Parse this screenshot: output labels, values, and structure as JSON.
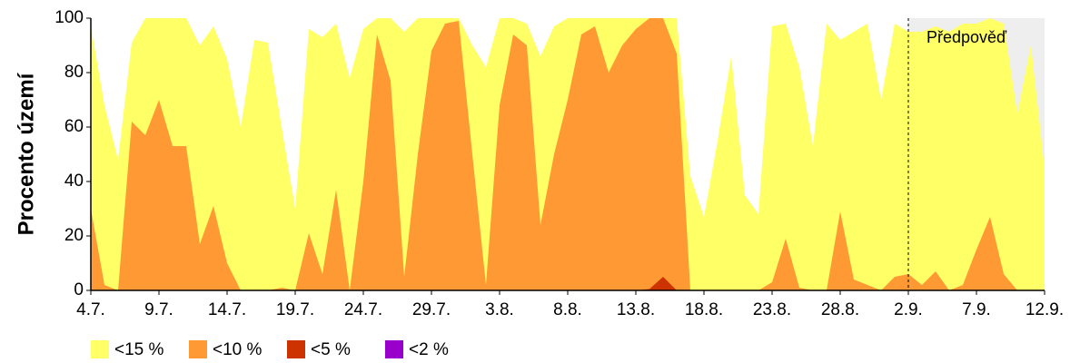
{
  "chart_data": {
    "type": "area",
    "ylabel": "Procento území",
    "categories": [
      "4.7.",
      null,
      null,
      null,
      null,
      "9.7.",
      null,
      null,
      null,
      null,
      "14.7.",
      null,
      null,
      null,
      null,
      "19.7.",
      null,
      null,
      null,
      null,
      "24.7.",
      null,
      null,
      null,
      null,
      "29.7.",
      null,
      null,
      null,
      null,
      "3.8.",
      null,
      null,
      null,
      null,
      "8.8.",
      null,
      null,
      null,
      null,
      "13.8.",
      null,
      null,
      null,
      null,
      "18.8.",
      null,
      null,
      null,
      null,
      "23.8.",
      null,
      null,
      null,
      null,
      "28.8.",
      null,
      null,
      null,
      null,
      "2.9.",
      null,
      null,
      null,
      null,
      "7.9.",
      null,
      null,
      null,
      null,
      "12.9."
    ],
    "series": [
      {
        "name": "<15 %",
        "color": "#ffff66",
        "values": [
          97,
          68,
          48,
          91,
          100,
          100,
          100,
          100,
          90,
          97,
          85,
          60,
          92,
          91,
          60,
          30,
          96,
          93,
          98,
          78,
          96,
          100,
          100,
          95,
          100,
          100,
          100,
          100,
          90,
          82,
          100,
          100,
          98,
          86,
          97,
          100,
          100,
          100,
          100,
          100,
          100,
          100,
          100,
          100,
          42,
          27,
          55,
          86,
          35,
          28,
          97,
          98,
          82,
          53,
          98,
          92,
          95,
          98,
          70,
          98,
          95,
          95,
          97,
          95,
          98,
          98,
          100,
          98,
          65,
          90,
          45
        ]
      },
      {
        "name": "<10 %",
        "color": "#ff9933",
        "values": [
          30,
          2,
          0,
          62,
          57,
          70,
          53,
          53,
          17,
          31,
          10,
          0,
          0,
          0,
          1,
          0,
          21,
          6,
          37,
          0,
          40,
          94,
          77,
          5,
          50,
          88,
          98,
          99,
          50,
          2,
          68,
          94,
          90,
          24,
          50,
          70,
          94,
          97,
          80,
          90,
          96,
          100,
          100,
          87,
          0,
          0,
          0,
          0,
          0,
          0,
          3,
          19,
          1,
          0,
          0,
          29,
          4,
          2,
          0,
          5,
          6,
          2,
          7,
          0,
          2,
          15,
          27,
          6,
          0,
          0,
          0
        ]
      },
      {
        "name": "<5 %",
        "color": "#cc3300",
        "values": [
          0,
          0,
          0,
          0,
          0,
          0,
          0,
          0,
          0,
          0,
          0,
          0,
          0,
          0,
          0,
          0,
          0,
          0,
          0,
          0,
          0,
          0,
          0,
          0,
          0,
          0,
          0,
          0,
          0,
          0,
          0,
          0,
          0,
          0,
          0,
          0,
          0,
          0,
          0,
          0,
          0,
          0.5,
          5,
          0,
          0,
          0,
          0,
          0,
          0,
          0,
          0,
          0,
          0,
          0,
          0,
          0,
          0,
          0,
          0,
          0,
          0,
          0,
          0,
          0,
          0,
          0,
          0,
          0,
          0,
          0,
          0
        ]
      },
      {
        "name": "<2 %",
        "color": "#9900cc",
        "values": [
          0,
          0,
          0,
          0,
          0,
          0,
          0,
          0,
          0,
          0,
          0,
          0,
          0,
          0,
          0,
          0,
          0,
          0,
          0,
          0,
          0,
          0,
          0,
          0,
          0,
          0,
          0,
          0,
          0,
          0,
          0,
          0,
          0,
          0,
          0,
          0,
          0,
          0,
          0,
          0,
          0,
          0,
          0,
          0,
          0,
          0,
          0,
          0,
          0,
          0,
          0,
          0,
          0,
          0,
          0,
          0,
          0,
          0,
          0,
          0,
          0,
          0,
          0,
          0,
          0,
          0,
          0,
          0,
          0,
          0,
          0
        ]
      }
    ],
    "ylim": [
      0,
      100
    ],
    "yticks": [
      0,
      20,
      40,
      60,
      80,
      100
    ],
    "forecast": {
      "label": "Předpověď",
      "start": "2.9.",
      "color": "#eeeeee"
    },
    "grid": false,
    "legend": "bottom"
  }
}
